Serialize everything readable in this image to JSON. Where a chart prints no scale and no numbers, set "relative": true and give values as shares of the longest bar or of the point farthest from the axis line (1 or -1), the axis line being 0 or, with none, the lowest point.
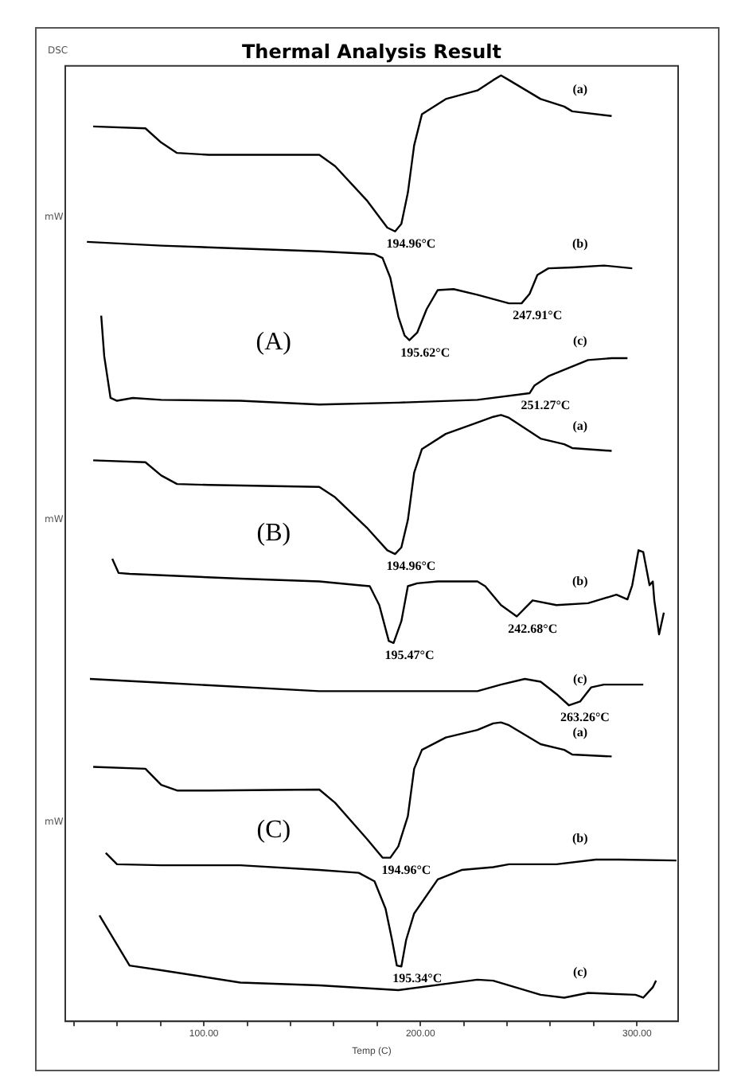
{
  "chart_data": {
    "type": "line",
    "title": "Thermal Analysis Result",
    "xlabel": "Temp (C)",
    "relative": true,
    "xlim": [
      36,
      319
    ],
    "xticks": [
      {
        "value": 40,
        "label": null
      },
      {
        "value": 60,
        "label": null
      },
      {
        "value": 80,
        "label": null
      },
      {
        "value": 100,
        "label": "100.00"
      },
      {
        "value": 120,
        "label": null
      },
      {
        "value": 140,
        "label": null
      },
      {
        "value": 160,
        "label": null
      },
      {
        "value": 180,
        "label": null
      },
      {
        "value": 200,
        "label": "200.00"
      },
      {
        "value": 220,
        "label": null
      },
      {
        "value": 240,
        "label": null
      },
      {
        "value": 260,
        "label": null
      },
      {
        "value": 280,
        "label": null
      },
      {
        "value": 300,
        "label": "300.00"
      }
    ],
    "tick_labels": "x",
    "legend": false,
    "marker": "none",
    "line_style": "solid",
    "series": [
      {
        "name": "(a)",
        "color": "#000000",
        "x": [
          48.9,
          73,
          80.3,
          87.6,
          102.2,
          153.3,
          160.6,
          175.2,
          184.7,
          188.3,
          191.2,
          194.2,
          197.1,
          200.7,
          211.7,
          226.3,
          233.6,
          237.2,
          240.9,
          255.5,
          266.4,
          270.1,
          288.3
        ],
        "values": [
          0.946,
          0.944,
          0.929,
          0.918,
          0.916,
          0.916,
          0.904,
          0.868,
          0.839,
          0.835,
          0.843,
          0.876,
          0.926,
          0.959,
          0.975,
          0.984,
          0.995,
          1.0,
          0.995,
          0.975,
          0.967,
          0.962,
          0.957
        ]
      },
      {
        "name": "(b)",
        "color": "#000000",
        "x": [
          46,
          80.3,
          116.8,
          153.3,
          178.8,
          182.5,
          186.1,
          189.8,
          192.7,
          194.9,
          198.5,
          202.9,
          208,
          215.3,
          226.3,
          240.9,
          246.7,
          250.4,
          254,
          259.1,
          270.1,
          284.7,
          297.8
        ],
        "values": [
          0.824,
          0.82,
          0.817,
          0.814,
          0.811,
          0.807,
          0.786,
          0.745,
          0.725,
          0.72,
          0.728,
          0.753,
          0.773,
          0.774,
          0.768,
          0.759,
          0.759,
          0.769,
          0.789,
          0.796,
          0.797,
          0.799,
          0.796
        ]
      },
      {
        "name": "(c)",
        "color": "#000000",
        "x": [
          52.6,
          54,
          56.9,
          59.9,
          67.2,
          80.3,
          116.8,
          153.3,
          189.8,
          226.3,
          250.4,
          252.6,
          259.1,
          277.4,
          288.3,
          295.6
        ],
        "values": [
          0.746,
          0.703,
          0.659,
          0.656,
          0.659,
          0.657,
          0.656,
          0.652,
          0.654,
          0.657,
          0.664,
          0.672,
          0.682,
          0.699,
          0.701,
          0.701
        ]
      },
      {
        "name": "(a)",
        "color": "#000000",
        "x": [
          48.9,
          73,
          80.3,
          87.6,
          102.2,
          153.3,
          160.6,
          175.2,
          184.7,
          188.3,
          191.2,
          194.2,
          197.1,
          200.7,
          211.7,
          226.3,
          233.6,
          237.2,
          240.9,
          255.5,
          266.4,
          270.1,
          288.3
        ],
        "values": [
          0.593,
          0.591,
          0.577,
          0.568,
          0.567,
          0.565,
          0.554,
          0.522,
          0.498,
          0.494,
          0.501,
          0.53,
          0.58,
          0.605,
          0.621,
          0.633,
          0.639,
          0.641,
          0.638,
          0.616,
          0.61,
          0.606,
          0.603
        ]
      },
      {
        "name": "(b)",
        "color": "#000000",
        "x": [
          57.7,
          60.6,
          65.7,
          116.8,
          153.3,
          171.5,
          176.6,
          181,
          185.4,
          187.6,
          191.2,
          194.2,
          198.5,
          208,
          226.3,
          229.9,
          237.2,
          244.5,
          251.8,
          262.8,
          277.4,
          290.5,
          295.6,
          297.8,
          300.7,
          302.9,
          305.8,
          307.3,
          308,
          310.2,
          312.4
        ],
        "values": [
          0.489,
          0.474,
          0.473,
          0.468,
          0.465,
          0.461,
          0.46,
          0.44,
          0.402,
          0.4,
          0.423,
          0.46,
          0.463,
          0.465,
          0.465,
          0.46,
          0.44,
          0.428,
          0.445,
          0.44,
          0.442,
          0.451,
          0.446,
          0.461,
          0.498,
          0.496,
          0.461,
          0.465,
          0.445,
          0.409,
          0.432
        ]
      },
      {
        "name": "(c)",
        "color": "#000000",
        "x": [
          47.4,
          80.3,
          153.3,
          226.3,
          237.2,
          248.2,
          255.5,
          262.8,
          268.6,
          273.7,
          278.8,
          284.7,
          302.9
        ],
        "values": [
          0.362,
          0.358,
          0.349,
          0.349,
          0.356,
          0.362,
          0.359,
          0.346,
          0.334,
          0.338,
          0.353,
          0.356,
          0.356
        ]
      },
      {
        "name": "(a)",
        "color": "#000000",
        "x": [
          48.9,
          73,
          80.3,
          87.6,
          102.2,
          153.3,
          160.6,
          175.2,
          182.5,
          186.1,
          189.8,
          194.2,
          197.1,
          200.7,
          211.7,
          226.3,
          233.6,
          237.2,
          240.9,
          255.5,
          266.4,
          270.1,
          288.3
        ],
        "values": [
          0.269,
          0.267,
          0.25,
          0.244,
          0.244,
          0.245,
          0.231,
          0.193,
          0.173,
          0.173,
          0.185,
          0.217,
          0.267,
          0.287,
          0.3,
          0.308,
          0.315,
          0.316,
          0.313,
          0.293,
          0.287,
          0.282,
          0.28
        ]
      },
      {
        "name": "(b)",
        "color": "#000000",
        "x": [
          54.7,
          59.9,
          80.3,
          116.8,
          153.3,
          171.5,
          178.8,
          183.9,
          186.9,
          189.1,
          191.2,
          193.4,
          197.1,
          208,
          219,
          233.6,
          240.9,
          262.8,
          281,
          292,
          318.2
        ],
        "values": [
          0.178,
          0.166,
          0.165,
          0.165,
          0.16,
          0.157,
          0.148,
          0.119,
          0.086,
          0.059,
          0.058,
          0.086,
          0.114,
          0.15,
          0.16,
          0.163,
          0.166,
          0.166,
          0.171,
          0.171,
          0.17
        ]
      },
      {
        "name": "(c)",
        "color": "#000000",
        "x": [
          51.8,
          65.7,
          80.3,
          116.8,
          153.3,
          189.8,
          226.3,
          233.6,
          255.5,
          266.4,
          277.4,
          299.3,
          302.9,
          307.3,
          308.8
        ],
        "values": [
          0.112,
          0.059,
          0.054,
          0.041,
          0.038,
          0.033,
          0.044,
          0.043,
          0.028,
          0.025,
          0.03,
          0.028,
          0.025,
          0.036,
          0.043
        ]
      }
    ],
    "annotations": [
      "DSC",
      "mW",
      "mW",
      "mW",
      "(A)",
      "(B)",
      "(C)",
      {
        "text": "194.96°C",
        "x": 188.3,
        "y": 0.835
      },
      {
        "text": "195.62°C",
        "x": 194.9,
        "y": 0.72
      },
      {
        "text": "247.91°C",
        "x": 246.7,
        "y": 0.759
      },
      {
        "text": "251.27°C",
        "x": 250.4,
        "y": 0.664
      },
      {
        "text": "194.96°C",
        "x": 188.3,
        "y": 0.494
      },
      {
        "text": "195.47°C",
        "x": 187.6,
        "y": 0.4
      },
      {
        "text": "242.68°C",
        "x": 244.5,
        "y": 0.428
      },
      {
        "text": "263.26°C",
        "x": 268.6,
        "y": 0.334
      },
      {
        "text": "194.96°C",
        "x": 186.1,
        "y": 0.173
      },
      {
        "text": "195.34°C",
        "x": 191.2,
        "y": 0.058
      }
    ]
  }
}
